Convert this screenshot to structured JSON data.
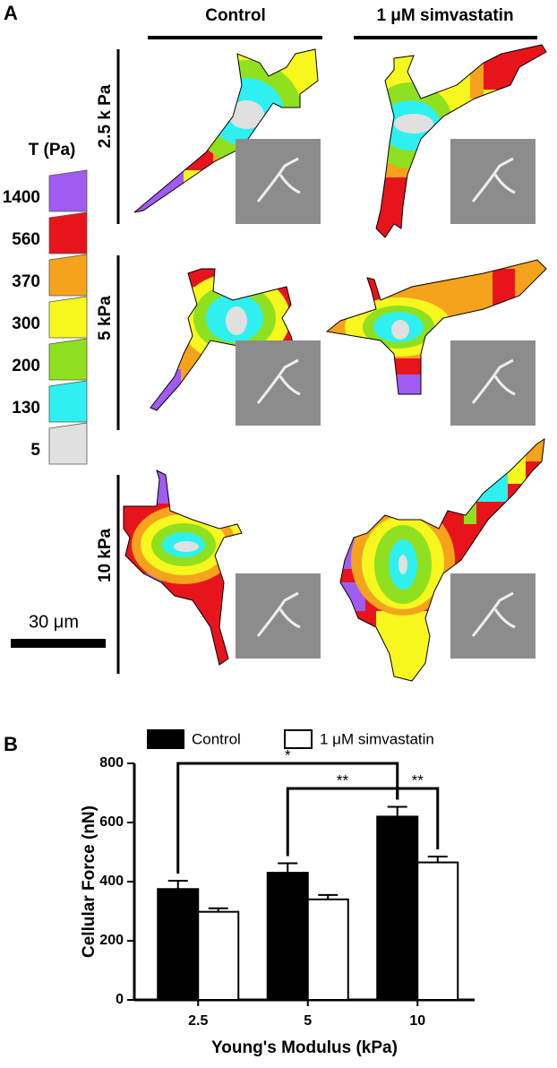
{
  "panel_a": {
    "label": "A",
    "columns": [
      "Control",
      "1 μM simvastatin"
    ],
    "rows": [
      "2.5 k Pa",
      "5 kPa",
      "10 kPa"
    ],
    "colorbar": {
      "title": "T (Pa)",
      "values": [
        1400,
        560,
        370,
        300,
        200,
        130,
        5
      ],
      "colors": [
        "#a05cf0",
        "#e8141c",
        "#f5a31c",
        "#f7f71e",
        "#8fe01e",
        "#2ff0f0",
        "#e0e0e0"
      ]
    },
    "scale_bar": "30 μm"
  },
  "panel_b": {
    "label": "B"
  },
  "chart_data": {
    "type": "bar",
    "x_label": "Young's Modulus (kPa)",
    "y_label": "Cellular Force (nN)",
    "categories": [
      "2.5",
      "5",
      "10"
    ],
    "series": [
      {
        "name": "Control",
        "color": "#000000",
        "values": [
          375,
          430,
          620
        ],
        "errors": [
          28,
          32,
          33
        ]
      },
      {
        "name": "1 μM simvastatin",
        "color": "#ffffff",
        "values": [
          298,
          340,
          465
        ],
        "errors": [
          12,
          15,
          20
        ]
      }
    ],
    "ylim": [
      0,
      800
    ],
    "yticks": [
      0,
      200,
      400,
      600,
      800
    ],
    "annotations": [
      "*",
      "**",
      "**"
    ]
  }
}
